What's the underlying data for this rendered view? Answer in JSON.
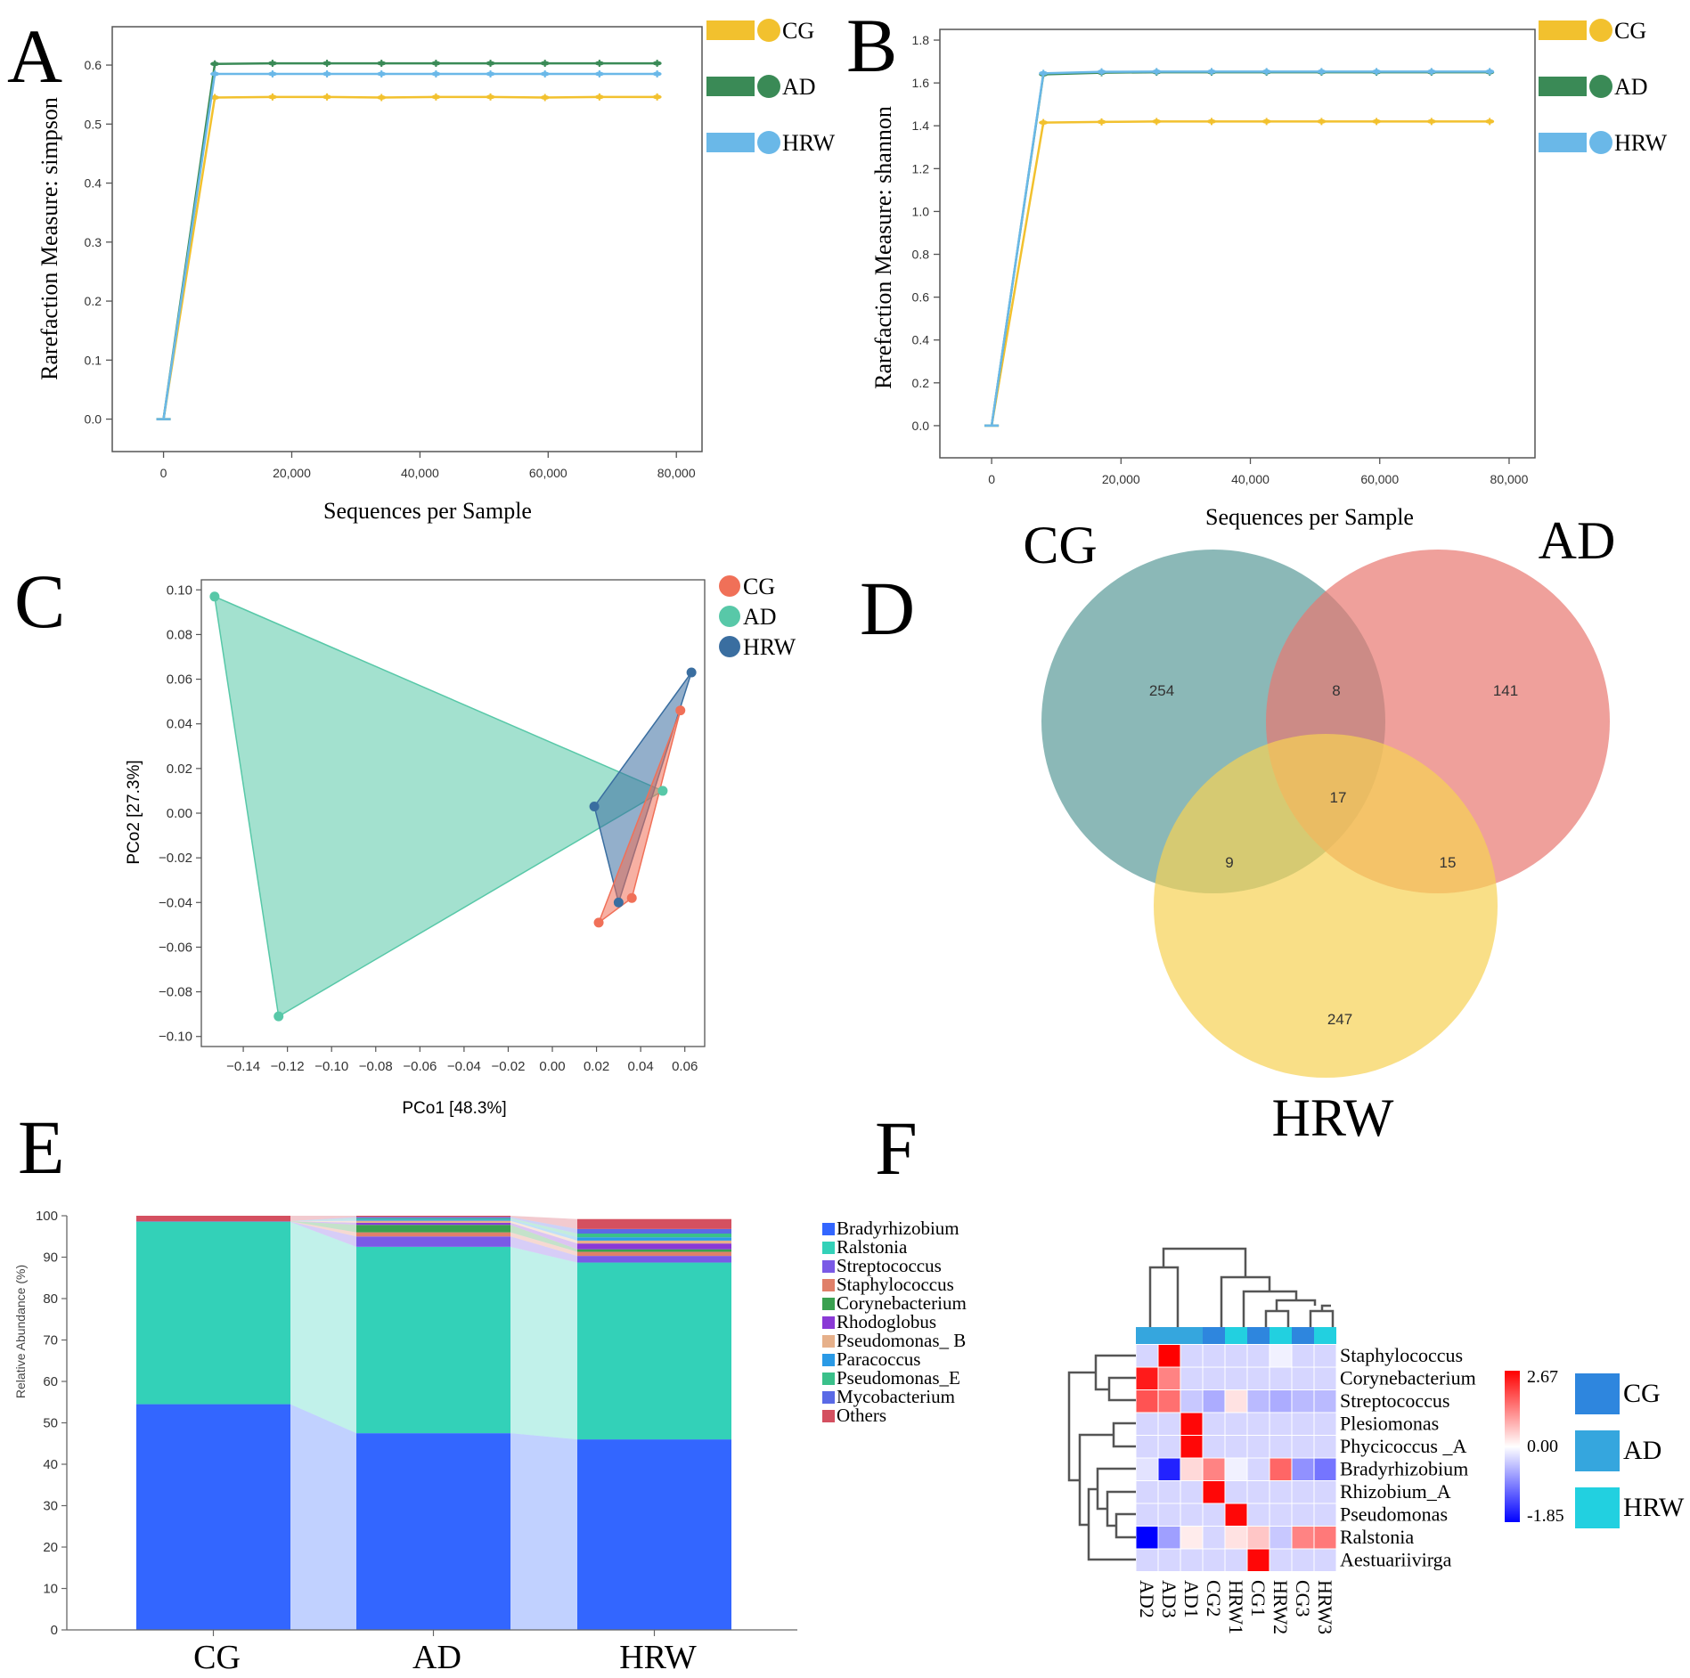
{
  "colors": {
    "cg_yellow": "#f2c12e",
    "ad_green": "#3a8a56",
    "hrw_blue": "#6ab8e8",
    "pcoa_cg": "#f07058",
    "pcoa_ad": "#58c8a8",
    "pcoa_hrw": "#3a6ea0",
    "venn_cg": "#5a9a98",
    "venn_ad": "#e87870",
    "venn_hrw": "#f7d254"
  },
  "panel_letters": [
    "A",
    "B",
    "C",
    "D",
    "E",
    "F"
  ],
  "chart_data": [
    {
      "id": "A",
      "type": "line",
      "xlabel": "Sequences per Sample",
      "ylabel": "Rarefaction Measure: simpson",
      "xlim": [
        -8000,
        84000
      ],
      "ylim": [
        -0.055,
        0.665
      ],
      "xticks": [
        0,
        20000,
        40000,
        60000,
        80000
      ],
      "xtick_labels": [
        "0",
        "20,000",
        "40,000",
        "60,000",
        "80,000"
      ],
      "yticks": [
        0.0,
        0.1,
        0.2,
        0.3,
        0.4,
        0.5,
        0.6
      ],
      "ytick_labels": [
        "0.0",
        "0.1",
        "0.2",
        "0.3",
        "0.4",
        "0.5",
        "0.6"
      ],
      "x": [
        0,
        8000,
        17000,
        25500,
        34000,
        42500,
        51000,
        59500,
        68000,
        77000
      ],
      "series": [
        {
          "name": "CG",
          "color": "#f2c12e",
          "values": [
            0,
            0.545,
            0.546,
            0.546,
            0.545,
            0.546,
            0.546,
            0.545,
            0.546,
            0.546
          ]
        },
        {
          "name": "AD",
          "color": "#3a8a56",
          "values": [
            0,
            0.602,
            0.603,
            0.603,
            0.603,
            0.603,
            0.603,
            0.603,
            0.603,
            0.603
          ]
        },
        {
          "name": "HRW",
          "color": "#6ab8e8",
          "values": [
            0,
            0.585,
            0.585,
            0.585,
            0.585,
            0.585,
            0.585,
            0.585,
            0.585,
            0.585
          ]
        }
      ],
      "legend": [
        "CG",
        "AD",
        "HRW"
      ]
    },
    {
      "id": "B",
      "type": "line",
      "xlabel": "Sequences per Sample",
      "ylabel": "Rarefaction Measure: shannon",
      "xlim": [
        -8000,
        84000
      ],
      "ylim": [
        -0.15,
        1.85
      ],
      "xticks": [
        0,
        20000,
        40000,
        60000,
        80000
      ],
      "xtick_labels": [
        "0",
        "20,000",
        "40,000",
        "60,000",
        "80,000"
      ],
      "yticks": [
        0.0,
        0.2,
        0.4,
        0.6,
        0.8,
        1.0,
        1.2,
        1.4,
        1.6,
        1.8
      ],
      "ytick_labels": [
        "0.0",
        "0.2",
        "0.4",
        "0.6",
        "0.8",
        "1.0",
        "1.2",
        "1.4",
        "1.6",
        "1.8"
      ],
      "x": [
        0,
        8000,
        17000,
        25500,
        34000,
        42500,
        51000,
        59500,
        68000,
        77000
      ],
      "series": [
        {
          "name": "CG",
          "color": "#f2c12e",
          "values": [
            0,
            1.415,
            1.418,
            1.42,
            1.42,
            1.42,
            1.42,
            1.42,
            1.42,
            1.42
          ]
        },
        {
          "name": "AD",
          "color": "#3a8a56",
          "values": [
            0,
            1.64,
            1.648,
            1.65,
            1.65,
            1.65,
            1.65,
            1.65,
            1.65,
            1.65
          ]
        },
        {
          "name": "HRW",
          "color": "#6ab8e8",
          "values": [
            0,
            1.645,
            1.652,
            1.653,
            1.653,
            1.653,
            1.653,
            1.653,
            1.653,
            1.653
          ]
        }
      ],
      "legend": [
        "CG",
        "AD",
        "HRW"
      ]
    },
    {
      "id": "C",
      "type": "scatter",
      "xlabel": "PCo1 [48.3%]",
      "ylabel": "PCo2 [27.3%]",
      "xlim": [
        -0.159,
        0.069
      ],
      "ylim": [
        -0.1045,
        0.1045
      ],
      "xticks": [
        -0.14,
        -0.12,
        -0.1,
        -0.08,
        -0.06,
        -0.04,
        -0.02,
        0.0,
        0.02,
        0.04,
        0.06
      ],
      "xtick_labels": [
        "−0.14",
        "−0.12",
        "−0.10",
        "−0.08",
        "−0.06",
        "−0.04",
        "−0.02",
        "0.00",
        "0.02",
        "0.04",
        "0.06"
      ],
      "yticks": [
        0.1,
        0.08,
        0.06,
        0.04,
        0.02,
        0.0,
        -0.02,
        -0.04,
        -0.06,
        -0.08,
        -0.1
      ],
      "ytick_labels": [
        "0.10",
        "0.08",
        "0.06",
        "0.04",
        "0.02",
        "0.00",
        "−0.02",
        "−0.04",
        "−0.06",
        "−0.08",
        "−0.10"
      ],
      "series": [
        {
          "name": "CG",
          "color": "#f07058",
          "points": [
            [
              0.058,
              0.046
            ],
            [
              0.036,
              -0.038
            ],
            [
              0.021,
              -0.049
            ]
          ]
        },
        {
          "name": "AD",
          "color": "#58c8a8",
          "points": [
            [
              -0.153,
              0.097
            ],
            [
              0.05,
              0.01
            ],
            [
              -0.124,
              -0.091
            ]
          ]
        },
        {
          "name": "HRW",
          "color": "#3a6ea0",
          "points": [
            [
              0.063,
              0.063
            ],
            [
              0.019,
              0.003
            ],
            [
              0.03,
              -0.04
            ]
          ]
        }
      ],
      "legend": [
        "CG",
        "AD",
        "HRW"
      ]
    },
    {
      "id": "D",
      "type": "venn",
      "sets": [
        "CG",
        "AD",
        "HRW"
      ],
      "regions": [
        {
          "label": "CG only",
          "value": 254
        },
        {
          "label": "CG & AD",
          "value": 8
        },
        {
          "label": "AD only",
          "value": 141
        },
        {
          "label": "CG & AD & HRW",
          "value": 17
        },
        {
          "label": "CG & HRW",
          "value": 9
        },
        {
          "label": "AD & HRW",
          "value": 15
        },
        {
          "label": "HRW only",
          "value": 247
        }
      ]
    },
    {
      "id": "E",
      "type": "bar",
      "stacked": true,
      "ylabel": "Relative Abundance (%)",
      "ylim": [
        0,
        100
      ],
      "yticks": [
        0,
        10,
        20,
        30,
        40,
        50,
        60,
        70,
        80,
        90,
        100
      ],
      "ytick_labels": [
        "0",
        "10",
        "20",
        "30",
        "40",
        "50",
        "60",
        "70",
        "80",
        "90",
        "100"
      ],
      "categories": [
        "CG",
        "AD",
        "HRW"
      ],
      "series": [
        {
          "name": "Bradyrhizobium",
          "color": "#3366ff",
          "values": [
            54.5,
            47.5,
            46.0
          ]
        },
        {
          "name": "Ralstonia",
          "color": "#33d1b8",
          "values": [
            44.0,
            45.0,
            42.7
          ]
        },
        {
          "name": "Streptococcus",
          "color": "#7a5ae6",
          "values": [
            0.1,
            2.5,
            1.6
          ]
        },
        {
          "name": "Staphylococcus",
          "color": "#e0806a",
          "values": [
            0.05,
            1.0,
            1.0
          ]
        },
        {
          "name": "Corynebacterium",
          "color": "#3aa050",
          "values": [
            0.05,
            1.8,
            0.6
          ]
        },
        {
          "name": "Rhodoglobus",
          "color": "#8a3ad6",
          "values": [
            0.0,
            0.5,
            1.4
          ]
        },
        {
          "name": "Pseudomonas_ B",
          "color": "#e6b08a",
          "values": [
            0.0,
            0.5,
            0.7
          ]
        },
        {
          "name": "Paracoccus",
          "color": "#2a9ae6",
          "values": [
            0.0,
            0.3,
            0.8
          ]
        },
        {
          "name": "Pseudomonas_E",
          "color": "#3ac08a",
          "values": [
            0.0,
            0.3,
            0.9
          ]
        },
        {
          "name": "Mycobacterium",
          "color": "#5a6ae6",
          "values": [
            0.0,
            0.3,
            1.1
          ]
        },
        {
          "name": "Others",
          "color": "#d45060",
          "values": [
            1.3,
            0.3,
            2.4
          ]
        }
      ]
    },
    {
      "id": "F",
      "type": "heatmap",
      "columns": [
        "AD2",
        "AD3",
        "AD1",
        "CG2",
        "HRW1",
        "CG1",
        "HRW2",
        "CG3",
        "HRW3"
      ],
      "column_groups": [
        "AD",
        "AD",
        "AD",
        "CG",
        "HRW",
        "CG",
        "HRW",
        "CG",
        "HRW"
      ],
      "rows": [
        "Staphylococcus",
        "Corynebacterium",
        "Streptococcus",
        "Plesiomonas",
        "Phycicoccus _A",
        "Bradyrhizobium",
        "Rhizobium_A",
        "Pseudomonas",
        "Ralstonia",
        "Aestuariivirga"
      ],
      "values": [
        [
          -0.3,
          2.67,
          -0.3,
          -0.3,
          -0.3,
          -0.3,
          -0.1,
          -0.3,
          -0.3
        ],
        [
          2.4,
          1.3,
          -0.3,
          -0.3,
          -0.3,
          -0.3,
          -0.3,
          -0.3,
          -0.3
        ],
        [
          1.8,
          1.5,
          -0.4,
          -0.6,
          0.3,
          -0.5,
          -0.6,
          -0.5,
          -0.5
        ],
        [
          -0.3,
          -0.3,
          2.6,
          -0.3,
          -0.3,
          -0.3,
          -0.3,
          -0.3,
          -0.3
        ],
        [
          -0.3,
          -0.3,
          2.6,
          -0.3,
          -0.3,
          -0.3,
          -0.3,
          -0.3,
          -0.3
        ],
        [
          -0.2,
          -1.6,
          0.4,
          1.3,
          -0.1,
          -0.3,
          1.6,
          -0.8,
          -1.0
        ],
        [
          -0.3,
          -0.3,
          -0.3,
          2.6,
          -0.3,
          -0.3,
          -0.3,
          -0.3,
          -0.3
        ],
        [
          -0.3,
          -0.3,
          -0.3,
          -0.3,
          2.6,
          -0.3,
          -0.3,
          -0.3,
          -0.3
        ],
        [
          -1.85,
          -0.7,
          0.2,
          -0.3,
          0.3,
          0.6,
          -0.4,
          1.3,
          1.4
        ],
        [
          -0.3,
          -0.3,
          -0.3,
          -0.3,
          -0.3,
          2.6,
          -0.3,
          -0.3,
          -0.3
        ]
      ],
      "scale": {
        "min": -1.85,
        "mid": 0.0,
        "max": 2.67,
        "labels": [
          "2.67",
          "0.00",
          "-1.85"
        ]
      },
      "group_legend": [
        {
          "name": "CG",
          "color": "#2e86de"
        },
        {
          "name": "AD",
          "color": "#35a6de"
        },
        {
          "name": "HRW",
          "color": "#22d0e0"
        }
      ]
    }
  ]
}
